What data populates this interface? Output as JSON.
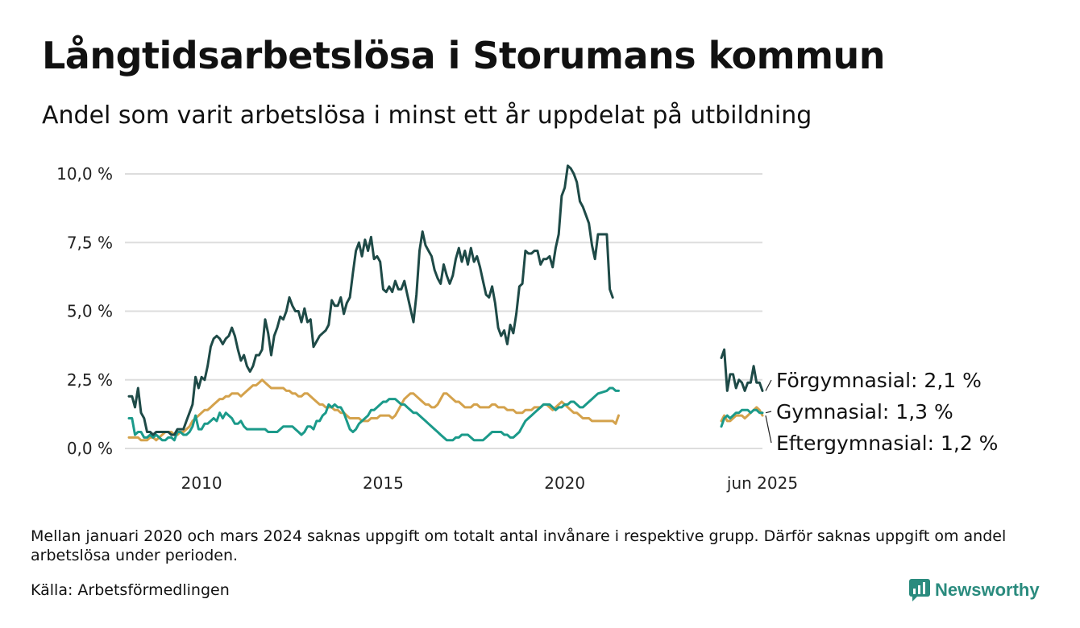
{
  "title": "Långtidsarbetslösa i Storumans kommun",
  "subtitle": "Andel som varit arbetslösa i minst ett år uppdelat på utbildning",
  "footnote": "Mellan januari 2020 och mars 2024 saknas uppgift om totalt antal invånare i respektive grupp. Därför saknas uppgift om andel arbetslösa under perioden.",
  "source": "Källa: Arbetsförmedlingen",
  "brand": "Newsworthy",
  "colors": {
    "Förgymnasial": "#1e4a47",
    "Gymnasial": "#1b9a8a",
    "Eftergymnasial": "#d4a24c",
    "grid": "#dddddd",
    "brand": "#2a8b7e"
  },
  "chart_data": {
    "type": "line",
    "title": "Långtidsarbetslösa i Storumans kommun",
    "subtitle": "Andel som varit arbetslösa i minst ett år uppdelat på utbildning",
    "x_unit": "date (YYYY-MM)",
    "ylim": [
      0,
      10
    ],
    "y_ticks": [
      0,
      2.5,
      5,
      7.5,
      10
    ],
    "y_tick_labels": [
      "0,0 %",
      "2,5 %",
      "5,0 %",
      "7,5 %",
      "10,0 %"
    ],
    "x_ticks": [
      "2010-01",
      "2015-01",
      "2020-01",
      "2025-06"
    ],
    "x_tick_labels": [
      "2010",
      "2015",
      "2020",
      "jun 2025"
    ],
    "axis_breaks": [
      {
        "from": "2020-12",
        "to": "2024-04"
      }
    ],
    "grid": true,
    "legend": "end-of-line labels",
    "end_labels": [
      {
        "series": "Förgymnasial",
        "text": "Förgymnasial: 2,1 %"
      },
      {
        "series": "Gymnasial",
        "text": "Gymnasial: 1,3 %"
      },
      {
        "series": "Eftergymnasial",
        "text": "Eftergymnasial: 1,2 %"
      }
    ],
    "series": [
      {
        "name": "Förgymnasial",
        "color": "#1e4a47",
        "segments": [
          {
            "start": "2008-01",
            "values": [
              1.9,
              1.9,
              1.5,
              2.2,
              1.3,
              1.1,
              0.6,
              0.6,
              0.5,
              0.6,
              0.6,
              0.6,
              0.6,
              0.6,
              0.5,
              0.5,
              0.7,
              0.7,
              0.7,
              1.0,
              1.3,
              1.6,
              2.6,
              2.2,
              2.6,
              2.5,
              3.0,
              3.7,
              4.0,
              4.1,
              4.0,
              3.8,
              4.0,
              4.1,
              4.4,
              4.1,
              3.6,
              3.2,
              3.4,
              3.0,
              2.8,
              3.0,
              3.4,
              3.4,
              3.6,
              4.7,
              4.2,
              3.4,
              4.1,
              4.4,
              4.8,
              4.7,
              5.0,
              5.5,
              5.2,
              5.0,
              5.0,
              4.6,
              5.1,
              4.6,
              4.7,
              3.7,
              3.9,
              4.1,
              4.2,
              4.3,
              4.5,
              5.4,
              5.2,
              5.2,
              5.5,
              4.9,
              5.3,
              5.5,
              6.4,
              7.2,
              7.5,
              7.0,
              7.6,
              7.2,
              7.7,
              6.9,
              7.0,
              6.8,
              5.8,
              5.7,
              5.9,
              5.7,
              6.1,
              5.8,
              5.8,
              6.1,
              5.6,
              5.1,
              4.6,
              5.6,
              7.2,
              7.9,
              7.4,
              7.2,
              7.0,
              6.5,
              6.2,
              6.0,
              6.7,
              6.3,
              6.0,
              6.3,
              6.9,
              7.3,
              6.8,
              7.2,
              6.7,
              7.3,
              6.8,
              7.0,
              6.6,
              6.1,
              5.6,
              5.5,
              5.9,
              5.3,
              4.4,
              4.1,
              4.3,
              3.8,
              4.5,
              4.2,
              4.9,
              5.9,
              6.0,
              7.2,
              7.1,
              7.1,
              7.2,
              7.2,
              6.7,
              6.9,
              6.9,
              7.0,
              6.6,
              7.3,
              7.8,
              9.2,
              9.5,
              10.3,
              10.2,
              10.0,
              9.7,
              9.0,
              8.8,
              8.5,
              8.2,
              7.4,
              6.9,
              7.8,
              7.8,
              5.8,
              5.5
            ]
          },
          {
            "start": "2024-04",
            "values": [
              3.3,
              3.6,
              2.1,
              2.7,
              2.7,
              2.2,
              2.5,
              2.4,
              2.1,
              2.4,
              2.4,
              3.0,
              2.4,
              2.4,
              2.1
            ]
          }
        ]
      },
      {
        "name": "Gymnasial",
        "color": "#1b9a8a",
        "segments": [
          {
            "start": "2008-01",
            "values": [
              1.1,
              1.1,
              0.5,
              0.6,
              0.6,
              0.4,
              0.4,
              0.5,
              0.4,
              0.5,
              0.4,
              0.3,
              0.3,
              0.4,
              0.4,
              0.3,
              0.6,
              0.6,
              0.5,
              0.5,
              0.6,
              0.8,
              1.2,
              0.7,
              0.7,
              0.9,
              0.9,
              1.0,
              1.1,
              1.0,
              1.3,
              1.1,
              1.3,
              1.2,
              1.1,
              0.9,
              0.9,
              1.0,
              0.8,
              0.7,
              0.7,
              0.7,
              0.7,
              0.7,
              0.7,
              0.7,
              0.6,
              0.6,
              0.6,
              0.6,
              0.7,
              0.8,
              0.8,
              0.8,
              0.8,
              0.7,
              0.6,
              0.5,
              0.6,
              0.8,
              0.8,
              0.7,
              1.0,
              1.0,
              1.2,
              1.3,
              1.6,
              1.5,
              1.6,
              1.5,
              1.5,
              1.3,
              1.0,
              0.7,
              0.6,
              0.7,
              0.9,
              1.0,
              1.1,
              1.2,
              1.4,
              1.4,
              1.5,
              1.6,
              1.7,
              1.7,
              1.8,
              1.8,
              1.8,
              1.7,
              1.6,
              1.6,
              1.5,
              1.4,
              1.3,
              1.3,
              1.2,
              1.1,
              1.0,
              0.9,
              0.8,
              0.7,
              0.6,
              0.5,
              0.4,
              0.3,
              0.3,
              0.3,
              0.4,
              0.4,
              0.5,
              0.5,
              0.5,
              0.4,
              0.3,
              0.3,
              0.3,
              0.3,
              0.4,
              0.5,
              0.6,
              0.6,
              0.6,
              0.6,
              0.5,
              0.5,
              0.4,
              0.4,
              0.5,
              0.6,
              0.8,
              1.0,
              1.1,
              1.2,
              1.3,
              1.4,
              1.5,
              1.6,
              1.6,
              1.6,
              1.5,
              1.4,
              1.5,
              1.5,
              1.6,
              1.6,
              1.7,
              1.7,
              1.6,
              1.5,
              1.5,
              1.6,
              1.7,
              1.8,
              1.9,
              2.0,
              2.1,
              2.2,
              2.2,
              2.1,
              2.1
            ]
          },
          {
            "start": "2024-04",
            "values": [
              0.8,
              1.1,
              1.2,
              1.1,
              1.2,
              1.3,
              1.3,
              1.4,
              1.4,
              1.4,
              1.3,
              1.4,
              1.4,
              1.3,
              1.3
            ]
          }
        ]
      },
      {
        "name": "Eftergymnasial",
        "color": "#d4a24c",
        "segments": [
          {
            "start": "2008-01",
            "values": [
              0.4,
              0.4,
              0.4,
              0.4,
              0.3,
              0.3,
              0.3,
              0.4,
              0.4,
              0.3,
              0.4,
              0.5,
              0.6,
              0.6,
              0.6,
              0.5,
              0.5,
              0.6,
              0.6,
              0.7,
              0.8,
              1.0,
              1.1,
              1.2,
              1.3,
              1.4,
              1.4,
              1.5,
              1.6,
              1.7,
              1.8,
              1.8,
              1.9,
              1.9,
              2.0,
              2.0,
              2.0,
              1.9,
              2.0,
              2.1,
              2.2,
              2.3,
              2.3,
              2.4,
              2.5,
              2.4,
              2.3,
              2.2,
              2.2,
              2.2,
              2.2,
              2.2,
              2.1,
              2.1,
              2.0,
              2.0,
              1.9,
              1.9,
              2.0,
              2.0,
              1.9,
              1.8,
              1.7,
              1.6,
              1.6,
              1.5,
              1.5,
              1.5,
              1.4,
              1.4,
              1.3,
              1.3,
              1.2,
              1.1,
              1.1,
              1.1,
              1.1,
              1.0,
              1.0,
              1.0,
              1.1,
              1.1,
              1.1,
              1.2,
              1.2,
              1.2,
              1.2,
              1.1,
              1.2,
              1.4,
              1.6,
              1.8,
              1.9,
              2.0,
              2.0,
              1.9,
              1.8,
              1.7,
              1.6,
              1.6,
              1.5,
              1.5,
              1.6,
              1.8,
              2.0,
              2.0,
              1.9,
              1.8,
              1.7,
              1.7,
              1.6,
              1.5,
              1.5,
              1.5,
              1.6,
              1.6,
              1.5,
              1.5,
              1.5,
              1.5,
              1.6,
              1.6,
              1.5,
              1.5,
              1.5,
              1.4,
              1.4,
              1.4,
              1.3,
              1.3,
              1.3,
              1.4,
              1.4,
              1.4,
              1.5,
              1.5,
              1.5,
              1.6,
              1.6,
              1.5,
              1.4,
              1.5,
              1.6,
              1.7,
              1.6,
              1.5,
              1.4,
              1.3,
              1.3,
              1.2,
              1.1,
              1.1,
              1.1,
              1.0,
              1.0,
              1.0,
              1.0,
              1.0,
              1.0,
              0.9,
              1.2
            ]
          },
          {
            "start": "2024-04",
            "values": [
              1.0,
              1.2,
              1.0,
              1.0,
              1.1,
              1.2,
              1.2,
              1.2,
              1.1,
              1.2,
              1.3,
              1.4,
              1.5,
              1.4,
              1.2
            ]
          }
        ]
      }
    ]
  }
}
